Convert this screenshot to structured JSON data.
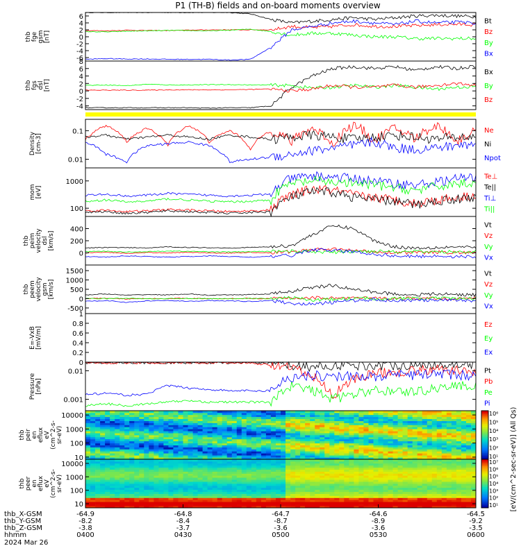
{
  "title": "P1 (TH-B) fields and on-board moments overview",
  "date_label": "2024 Mar 26",
  "ephemeris": {
    "row_labels": [
      "thb_X-GSM",
      "thb_Y-GSM",
      "thb_Z-GSM",
      "hhmm"
    ],
    "columns": [
      {
        "x": "-64.9",
        "y": "-8.2",
        "z": "-3.8",
        "t": "0400"
      },
      {
        "x": "-64.8",
        "y": "-8.4",
        "z": "-3.7",
        "t": "0430"
      },
      {
        "x": "-64.7",
        "y": "-8.7",
        "z": "-3.6",
        "t": "0500"
      },
      {
        "x": "-64.6",
        "y": "-8.9",
        "z": "-3.6",
        "t": "0530"
      },
      {
        "x": "-64.5",
        "y": "-9.2",
        "z": "-3.5",
        "t": "0600"
      }
    ]
  },
  "colorbar_label": "[eV/(cm^2-sec-sr-eV)] (All Qs)",
  "colorbar1_ticks": [
    "10^1",
    "10^2",
    "10^3",
    "10^4",
    "10^5",
    "10^6"
  ],
  "colorbar2_ticks": [
    "10^1",
    "10^2",
    "10^3",
    "10^4",
    "10^5",
    "10^6",
    "10^7"
  ],
  "colors": {
    "black": "#000000",
    "red": "#ff0000",
    "green": "#00ff00",
    "blue": "#0000ff",
    "status_bar": "#ffff00"
  },
  "chart_data": [
    {
      "type": "line",
      "ylabel": [
        "thb",
        "fge",
        "gsm",
        "[nT]"
      ],
      "ylim": [
        -7,
        7
      ],
      "yticks": [
        -6,
        -4,
        -2,
        0,
        2,
        4,
        6
      ],
      "xlim": [
        "04:00",
        "06:00"
      ],
      "series": [
        {
          "name": "Bt",
          "color": "black",
          "values": [
            7.0,
            7.0,
            7.0,
            7.0,
            7.0,
            7.0,
            7.0,
            7.0,
            6.6,
            5.0,
            4.0,
            4.5,
            5.0,
            5.5,
            5.0,
            5.5,
            6.0,
            6.2,
            6.0,
            5.8
          ]
        },
        {
          "name": "Bz",
          "color": "red",
          "values": [
            1.8,
            1.7,
            1.9,
            1.8,
            1.8,
            1.9,
            2.0,
            2.0,
            2.0,
            2.0,
            3.0,
            2.6,
            3.0,
            3.5,
            3.0,
            3.0,
            3.2,
            3.5,
            3.6,
            3.5
          ]
        },
        {
          "name": "By",
          "color": "green",
          "values": [
            1.5,
            1.4,
            1.6,
            1.7,
            1.8,
            1.8,
            1.7,
            1.9,
            2.2,
            1.5,
            0.5,
            1.0,
            1.0,
            0.5,
            0.0,
            0.0,
            -0.5,
            -0.5,
            -0.5,
            -0.5
          ]
        },
        {
          "name": "Bx",
          "color": "blue",
          "values": [
            -6.5,
            -6.3,
            -6.4,
            -6.4,
            -6.5,
            -6.5,
            -6.5,
            -6.7,
            -6.5,
            -3.0,
            2.0,
            3.0,
            4.0,
            4.5,
            4.0,
            3.5,
            4.5,
            4.0,
            4.2,
            4.0
          ]
        }
      ]
    },
    {
      "type": "line",
      "ylabel": [
        "thb",
        "fgs",
        "dsl",
        "[nT]"
      ],
      "ylim": [
        -5,
        8
      ],
      "yticks": [
        -4,
        -2,
        0,
        2,
        4,
        6,
        8
      ],
      "xlim": [
        "04:00",
        "06:00"
      ],
      "series": [
        {
          "name": "Bx",
          "color": "black",
          "values": [
            -4.5,
            -4.5,
            -4.5,
            -4.5,
            -4.5,
            -4.5,
            -4.6,
            -4.5,
            -4.5,
            -4.0,
            1.0,
            4.0,
            6.0,
            6.5,
            6.0,
            6.5,
            5.5,
            6.5,
            6.0,
            6.8
          ]
        },
        {
          "name": "By",
          "color": "green",
          "values": [
            1.5,
            1.6,
            1.4,
            1.8,
            1.6,
            1.6,
            1.7,
            1.7,
            1.6,
            1.6,
            1.4,
            0.8,
            1.0,
            1.5,
            1.0,
            1.5,
            1.0,
            0.5,
            1.0,
            1.2
          ]
        },
        {
          "name": "Bz",
          "color": "red",
          "values": [
            0.2,
            0.2,
            0.2,
            0.2,
            0.3,
            0.3,
            0.3,
            0.3,
            0.4,
            0.5,
            0.0,
            0.5,
            1.5,
            1.0,
            1.0,
            1.5,
            1.0,
            1.5,
            2.0,
            1.5
          ]
        }
      ]
    },
    {
      "type": "line",
      "ylabel": [
        "Density",
        "[cm-3]"
      ],
      "yscale": "log",
      "ylim": [
        0.005,
        0.25
      ],
      "yticks": [
        0.01,
        0.1
      ],
      "xlim": [
        "04:00",
        "06:00"
      ],
      "series": [
        {
          "name": "Ne",
          "color": "red",
          "values": [
            0.05,
            0.15,
            0.04,
            0.12,
            0.03,
            0.15,
            0.04,
            0.1,
            0.02,
            0.1,
            0.04,
            0.12,
            0.03,
            0.15,
            0.04,
            0.12,
            0.05,
            0.15,
            0.04,
            0.1
          ]
        },
        {
          "name": "Ni",
          "color": "black",
          "values": [
            0.06,
            0.07,
            0.05,
            0.06,
            0.07,
            0.06,
            0.05,
            0.07,
            0.06,
            0.05,
            0.06,
            0.07,
            0.06,
            0.05,
            0.06,
            0.07,
            0.06,
            0.05,
            0.06,
            0.06
          ]
        },
        {
          "name": "Npot",
          "color": "blue",
          "values": [
            0.04,
            0.015,
            0.008,
            0.03,
            0.035,
            0.04,
            0.03,
            0.008,
            0.01,
            0.012,
            0.015,
            0.02,
            0.025,
            0.03,
            0.04,
            0.025,
            0.022,
            0.025,
            0.03,
            0.035
          ]
        }
      ]
    },
    {
      "type": "line",
      "ylabel": [
        "mom",
        "[eV]"
      ],
      "yscale": "log",
      "ylim": [
        50,
        3000
      ],
      "yticks": [
        100,
        1000
      ],
      "xlim": [
        "04:00",
        "06:00"
      ],
      "series": [
        {
          "name": "Te⊥",
          "color": "red",
          "values": [
            80,
            85,
            75,
            80,
            90,
            85,
            80,
            75,
            80,
            85,
            300,
            500,
            450,
            300,
            250,
            200,
            150,
            200,
            250,
            300
          ]
        },
        {
          "name": "Te||",
          "color": "black",
          "values": [
            70,
            75,
            65,
            70,
            80,
            75,
            70,
            65,
            70,
            75,
            250,
            400,
            380,
            250,
            200,
            180,
            130,
            180,
            220,
            250
          ]
        },
        {
          "name": "Ti⊥",
          "color": "blue",
          "values": [
            300,
            320,
            280,
            300,
            350,
            320,
            300,
            280,
            300,
            320,
            1200,
            1500,
            1400,
            1200,
            1000,
            800,
            700,
            900,
            1200,
            1400
          ]
        },
        {
          "name": "Ti||",
          "color": "green",
          "values": [
            180,
            200,
            170,
            180,
            220,
            200,
            180,
            170,
            180,
            200,
            800,
            1000,
            900,
            800,
            700,
            550,
            450,
            600,
            800,
            900
          ]
        }
      ]
    },
    {
      "type": "line",
      "ylabel": [
        "thb",
        "peim",
        "velocity",
        "dsl",
        "[km/s]"
      ],
      "ylim": [
        -200,
        600
      ],
      "yticks": [
        0,
        200,
        400
      ],
      "xlim": [
        "04:00",
        "06:00"
      ],
      "series": [
        {
          "name": "Vt",
          "color": "black",
          "values": [
            80,
            90,
            85,
            80,
            100,
            90,
            85,
            80,
            90,
            100,
            120,
            300,
            450,
            400,
            200,
            100,
            80,
            90,
            100,
            80
          ]
        },
        {
          "name": "Vz",
          "color": "red",
          "values": [
            0,
            10,
            -10,
            5,
            0,
            10,
            0,
            -5,
            10,
            0,
            20,
            50,
            60,
            40,
            20,
            10,
            0,
            10,
            5,
            0
          ]
        },
        {
          "name": "Vy",
          "color": "green",
          "values": [
            20,
            25,
            15,
            20,
            30,
            25,
            20,
            15,
            20,
            25,
            30,
            20,
            10,
            20,
            30,
            25,
            20,
            15,
            20,
            25
          ]
        },
        {
          "name": "Vx",
          "color": "blue",
          "values": [
            -60,
            -70,
            -50,
            -60,
            -70,
            -60,
            -50,
            -60,
            -70,
            -60,
            -40,
            50,
            40,
            20,
            -20,
            -50,
            -60,
            -50,
            -60,
            -70
          ]
        }
      ]
    },
    {
      "type": "line",
      "ylabel": [
        "thb",
        "peem",
        "velocity",
        "gsm",
        "[km/s]"
      ],
      "ylim": [
        -800,
        1800
      ],
      "yticks": [
        -500,
        0,
        500,
        1000,
        1500
      ],
      "xlim": [
        "04:00",
        "06:00"
      ],
      "series": [
        {
          "name": "Vt",
          "color": "black",
          "values": [
            200,
            250,
            180,
            220,
            200,
            250,
            180,
            200,
            220,
            250,
            400,
            600,
            700,
            500,
            350,
            250,
            200,
            250,
            220,
            200
          ]
        },
        {
          "name": "Vz",
          "color": "red",
          "values": [
            0,
            20,
            -20,
            10,
            0,
            20,
            -10,
            0,
            10,
            0,
            30,
            50,
            40,
            30,
            20,
            0,
            10,
            0,
            10,
            0
          ]
        },
        {
          "name": "Vy",
          "color": "green",
          "values": [
            10,
            0,
            20,
            -10,
            0,
            10,
            0,
            -10,
            10,
            0,
            50,
            -80,
            -40,
            20,
            0,
            10,
            0,
            10,
            0,
            10
          ]
        },
        {
          "name": "Vx",
          "color": "blue",
          "values": [
            -150,
            -100,
            -200,
            -120,
            -100,
            -150,
            -100,
            -120,
            -150,
            -100,
            -250,
            -300,
            -200,
            -100,
            -50,
            -100,
            -80,
            -100,
            -80,
            -100
          ]
        }
      ]
    },
    {
      "type": "line",
      "ylabel": [
        "E=-VxB",
        "[mV/m]"
      ],
      "ylim": [
        0,
        1.0
      ],
      "yticks": [
        0.0,
        0.2,
        0.4,
        0.6,
        0.8,
        1.0
      ],
      "xlim": [
        "04:00",
        "06:00"
      ],
      "series": [
        {
          "name": "Ez",
          "color": "red",
          "values": []
        },
        {
          "name": "Ey",
          "color": "green",
          "values": []
        },
        {
          "name": "Ex",
          "color": "blue",
          "values": []
        }
      ]
    },
    {
      "type": "line",
      "ylabel": [
        "Pressure",
        "[nPa]"
      ],
      "yscale": "log",
      "ylim": [
        0.0004,
        0.02
      ],
      "yticks": [
        0.001,
        0.01
      ],
      "xlim": [
        "04:00",
        "06:00"
      ],
      "series": [
        {
          "name": "Pt",
          "color": "black",
          "values": [
            0.019,
            0.019,
            0.019,
            0.019,
            0.019,
            0.019,
            0.019,
            0.019,
            0.019,
            0.018,
            0.016,
            0.014,
            0.015,
            0.016,
            0.015,
            0.016,
            0.016,
            0.017,
            0.017,
            0.018
          ]
        },
        {
          "name": "Pb",
          "color": "red",
          "values": [
            0.019,
            0.019,
            0.019,
            0.019,
            0.019,
            0.019,
            0.019,
            0.019,
            0.018,
            0.016,
            0.012,
            0.006,
            0.001,
            0.005,
            0.008,
            0.009,
            0.01,
            0.011,
            0.01,
            0.009
          ]
        },
        {
          "name": "Pe",
          "color": "green",
          "values": [
            0.0006,
            0.0007,
            0.0006,
            0.0007,
            0.0008,
            0.0009,
            0.0008,
            0.0008,
            0.0008,
            0.0008,
            0.003,
            0.002,
            0.001,
            0.0015,
            0.002,
            0.002,
            0.0018,
            0.0025,
            0.003,
            0.003
          ]
        },
        {
          "name": "Pi",
          "color": "blue",
          "values": [
            0.0015,
            0.0016,
            0.0014,
            0.0015,
            0.003,
            0.0025,
            0.0022,
            0.002,
            0.002,
            0.002,
            0.006,
            0.007,
            0.006,
            0.007,
            0.006,
            0.007,
            0.007,
            0.008,
            0.007,
            0.007
          ]
        }
      ]
    },
    {
      "type": "heatmap",
      "ylabel": [
        "thb",
        "peir",
        "en",
        "eflux",
        "eV",
        "(cm^2-s-",
        "sr-eV)"
      ],
      "yscale": "log",
      "ylim": [
        7,
        20000
      ],
      "yticks": [
        10,
        100,
        1000,
        10000
      ],
      "xlim": [
        "04:00",
        "06:00"
      ]
    },
    {
      "type": "heatmap",
      "ylabel": [
        "thb",
        "peer",
        "en",
        "eflux",
        "eV",
        "(cm^2-s-",
        "sr-eV)"
      ],
      "yscale": "log",
      "ylim": [
        5,
        20000
      ],
      "yticks": [
        10,
        100,
        1000,
        10000
      ],
      "xlim": [
        "04:00",
        "06:00"
      ]
    }
  ]
}
